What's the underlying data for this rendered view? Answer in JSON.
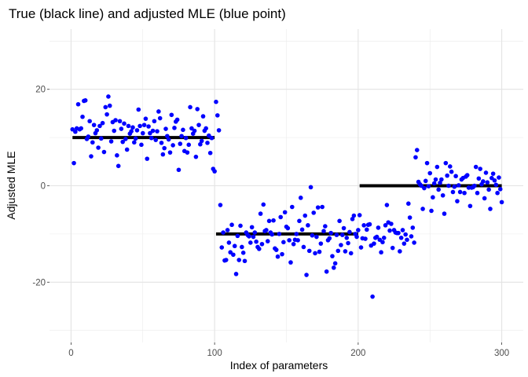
{
  "chart_data": {
    "type": "scatter",
    "title": "True (black line) and adjusted MLE (blue point)",
    "xlabel": "Index of parameters",
    "ylabel": "Adjusted MLE",
    "xlim": [
      -15,
      315
    ],
    "ylim": [
      -32.5,
      32.5
    ],
    "x_ticks": [
      0,
      100,
      200,
      300
    ],
    "y_ticks": [
      -20,
      0,
      20
    ],
    "grid": true,
    "point_color": "#0000FF",
    "line_color": "#000000",
    "true_values": [
      {
        "x_start": 1,
        "x_end": 100,
        "value": 10
      },
      {
        "x_start": 101,
        "x_end": 200,
        "value": -10
      },
      {
        "x_start": 201,
        "x_end": 300,
        "value": 0
      }
    ],
    "series": [
      {
        "values": [
          11.7,
          4.7,
          11.2,
          11.9,
          16.9,
          11.7,
          11.9,
          14.3,
          17.6,
          17.7,
          9.7,
          10.2,
          13.4,
          6.1,
          9.0,
          12.6,
          10.9,
          11.5,
          7.9,
          12.4,
          9.8,
          13.0,
          7.0,
          16.3,
          14.8,
          18.5,
          16.6,
          9.2,
          13.2,
          11.4,
          13.6,
          6.3,
          4.1,
          13.4,
          11.8,
          9.1,
          12.9,
          9.7,
          7.5,
          12.4,
          10.8,
          11.3,
          12.1,
          9.0,
          9.8,
          11.5,
          15.8,
          12.4,
          8.5,
          10.9,
          12.6,
          13.9,
          5.6,
          12.3,
          10.9,
          9.9,
          11.4,
          13.4,
          9.5,
          11.3,
          15.4,
          14.0,
          8.9,
          6.5,
          7.8,
          11.8,
          10.3,
          9.6,
          6.9,
          14.7,
          8.4,
          12.0,
          13.3,
          13.7,
          3.3,
          8.7,
          10.3,
          11.6,
          7.2,
          9.9,
          6.9,
          8.5,
          16.3,
          11.9,
          10.8,
          11.4,
          6.0,
          15.9,
          12.6,
          8.6,
          9.3,
          14.4,
          11.4,
          11.9,
          8.9,
          10.4,
          6.8,
          9.9,
          3.5,
          3.0,
          17.4,
          14.6,
          11.5,
          -4.0,
          -12.8,
          -9.7,
          -15.5,
          -15.4,
          -9.2,
          -11.8,
          -13.8,
          -8.1,
          -14.3,
          -12.5,
          -18.3,
          -10.4,
          -15.4,
          -8.3,
          -12.7,
          -13.9,
          -15.6,
          -9.7,
          -10.2,
          -10.5,
          -11.8,
          -8.6,
          -10.6,
          -9.7,
          -11.6,
          -12.7,
          -13.1,
          -5.8,
          -12.1,
          -3.9,
          -9.4,
          -9.2,
          -11.5,
          -7.3,
          -9.7,
          -10.1,
          -7.2,
          -13.0,
          -13.3,
          -14.7,
          -10.0,
          -6.5,
          -14.2,
          -11.7,
          -5.5,
          -8.5,
          -8.8,
          -11.3,
          -15.9,
          -4.4,
          -12.1,
          -11.2,
          -10.0,
          -11.3,
          -7.3,
          -2.5,
          -9.1,
          -12.7,
          -6.2,
          -18.5,
          -8.2,
          -13.5,
          -0.3,
          -10.3,
          -5.6,
          -14.0,
          -10.6,
          -4.5,
          -13.7,
          -12.0,
          -4.4,
          -9.4,
          -8.4,
          -17.8,
          -11.3,
          -10.9,
          -9.8,
          -14.6,
          -17.0,
          -16.1,
          -10.2,
          -13.5,
          -7.3,
          -12.3,
          -10.2,
          -8.8,
          -13.6,
          -10.8,
          -11.9,
          -9.6,
          -14.0,
          -6.9,
          -6.2,
          -10.0,
          -10.6,
          -9.2,
          -6.1,
          -12.8,
          -10.9,
          -8.2,
          -11.0,
          -9.1,
          -8.1,
          -8.0,
          -12.4,
          -23.0,
          -12.0,
          -10.8,
          -10.6,
          -8.7,
          -11.2,
          -13.8,
          -11.7,
          -10.8,
          -8.2,
          -4.0,
          -7.6,
          -9.3,
          -7.9,
          -12.9,
          -9.2,
          -9.7,
          -9.8,
          -9.8,
          -13.6,
          -10.8,
          -9.2,
          -12.0,
          -10.1,
          -11.2,
          -3.7,
          -6.6,
          -10.5,
          -8.7,
          -11.8,
          5.9,
          7.4,
          0.8,
          0.3,
          0.0,
          -4.8,
          -0.5,
          1.0,
          4.7,
          -0.1,
          2.6,
          -5.2,
          -2.4,
          0.5,
          1.3,
          3.9,
          -0.8,
          0.6,
          1.3,
          -2.0,
          -5.8,
          4.7,
          2.1,
          0.0,
          4.0,
          2.9,
          -1.3,
          -0.2,
          2.0,
          -3.2,
          0.1,
          -1.3,
          1.3,
          1.6,
          -1.5,
          1.9,
          2.2,
          -0.4,
          -4.2,
          -0.4,
          -0.3,
          0.0,
          3.9,
          -1.5,
          1.5,
          3.5,
          0.3,
          0.9,
          -2.6,
          2.7,
          0.7,
          -0.8,
          -4.8,
          1.6,
          2.5,
          1.1,
          0.2,
          -1.5,
          1.7,
          -0.7,
          -3.4
        ]
      }
    ]
  }
}
